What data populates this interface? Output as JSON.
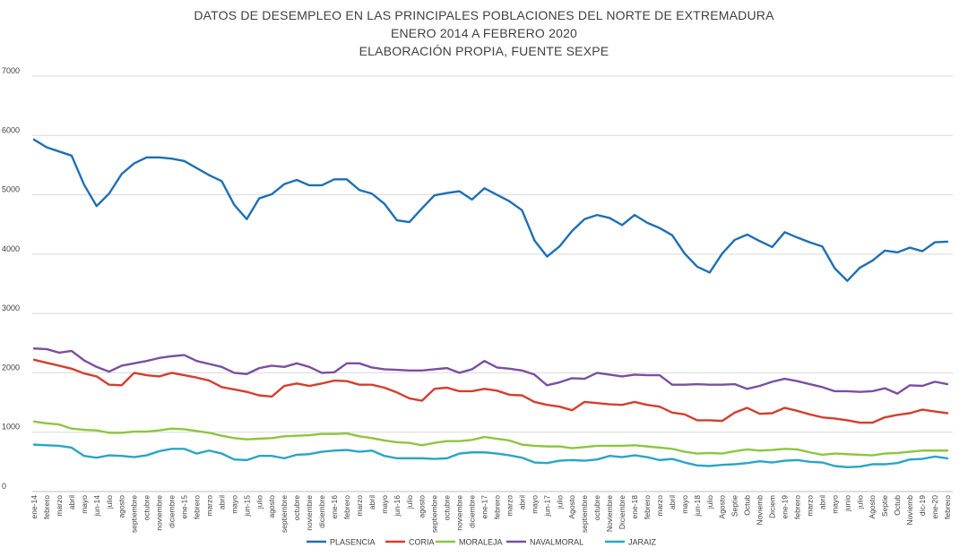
{
  "chart_data": {
    "type": "line",
    "title": [
      "DATOS DE DESEMPLEO EN LAS PRINCIPALES POBLACIONES DEL NORTE DE EXTREMADURA",
      "ENERO 2014 A  FEBRERO 2020",
      "ELABORACIÓN PROPIA, FUENTE SEXPE"
    ],
    "xlabel": "",
    "ylabel": "",
    "ylim": [
      0,
      7000
    ],
    "yticks": [
      0,
      1000,
      2000,
      3000,
      4000,
      5000,
      6000,
      7000
    ],
    "grid": true,
    "legend": "bottom",
    "categories": [
      "ene-14",
      "febrero",
      "marzo",
      "abril",
      "mayo",
      "jun-14",
      "julio",
      "agosto",
      "septiembre",
      "octubre",
      "noviembre",
      "diciembre",
      "ene-15",
      "febrero",
      "marzo",
      "abril",
      "mayo",
      "jun-15",
      "julio",
      "agosto",
      "septiembre",
      "octubre",
      "noviembre",
      "diciembre",
      "ene-16",
      "febrero",
      "marzo",
      "abril",
      "mayo",
      "jun-16",
      "julio",
      "agosto",
      "septiembre",
      "octubre",
      "noviembre",
      "diciembre",
      "ene-17",
      "febrero",
      "marzo",
      "abril",
      "mayo",
      "jun-17",
      "julio",
      "Agosto",
      "septiembre",
      "octubre",
      "Noviembre",
      "Diciembre",
      "ene-18",
      "febrero",
      "marzo",
      "abril",
      "mayo",
      "jun-18",
      "julio",
      "Agosto",
      "Septie",
      "Octub",
      "Noviemb",
      "Diciem",
      "ene-19",
      "febrero",
      "marzo",
      "abril",
      "mayo",
      "junio",
      "julio",
      "Agosto",
      "Septie",
      "Octub",
      "Noviemb",
      "dic-19",
      "ene-20",
      "febrero"
    ],
    "series": [
      {
        "name": "PLASENCIA",
        "color": "#1F6FB5",
        "values": [
          5930,
          5800,
          5730,
          5660,
          5170,
          4810,
          5020,
          5350,
          5530,
          5630,
          5630,
          5610,
          5570,
          5450,
          5330,
          5230,
          4830,
          4590,
          4940,
          5010,
          5180,
          5250,
          5160,
          5160,
          5260,
          5260,
          5080,
          5020,
          4850,
          4570,
          4540,
          4770,
          4990,
          5030,
          5060,
          4920,
          5110,
          5000,
          4890,
          4740,
          4230,
          3960,
          4130,
          4390,
          4590,
          4660,
          4610,
          4490,
          4660,
          4530,
          4440,
          4320,
          4010,
          3790,
          3690,
          4010,
          4240,
          4330,
          4220,
          4120,
          4370,
          4280,
          4200,
          4130,
          3760,
          3550,
          3770,
          3890,
          4060,
          4030,
          4110,
          4050,
          4200,
          4210
        ]
      },
      {
        "name": "CORIA",
        "color": "#D33F2E",
        "values": [
          2220,
          2170,
          2120,
          2070,
          1990,
          1940,
          1800,
          1790,
          2000,
          1960,
          1940,
          2000,
          1960,
          1920,
          1870,
          1760,
          1720,
          1680,
          1620,
          1600,
          1780,
          1820,
          1780,
          1820,
          1870,
          1860,
          1800,
          1800,
          1750,
          1670,
          1570,
          1530,
          1730,
          1750,
          1690,
          1690,
          1730,
          1700,
          1630,
          1620,
          1510,
          1460,
          1430,
          1370,
          1510,
          1490,
          1470,
          1460,
          1510,
          1460,
          1430,
          1330,
          1300,
          1200,
          1200,
          1190,
          1330,
          1410,
          1310,
          1320,
          1410,
          1360,
          1300,
          1250,
          1230,
          1200,
          1160,
          1160,
          1250,
          1290,
          1320,
          1380,
          1350,
          1320
        ]
      },
      {
        "name": "MORALEJA",
        "color": "#8CC63F",
        "values": [
          1180,
          1150,
          1130,
          1060,
          1040,
          1030,
          990,
          990,
          1010,
          1010,
          1030,
          1060,
          1050,
          1020,
          990,
          940,
          900,
          880,
          890,
          900,
          930,
          940,
          950,
          970,
          970,
          980,
          930,
          900,
          860,
          830,
          820,
          780,
          820,
          850,
          850,
          870,
          920,
          890,
          860,
          790,
          770,
          760,
          760,
          730,
          750,
          770,
          770,
          770,
          780,
          760,
          740,
          720,
          670,
          640,
          650,
          640,
          680,
          710,
          690,
          700,
          720,
          710,
          660,
          620,
          640,
          630,
          620,
          610,
          640,
          650,
          670,
          690,
          690,
          690
        ]
      },
      {
        "name": "NAVALMORAL",
        "color": "#7B4FA0",
        "values": [
          2410,
          2400,
          2340,
          2370,
          2210,
          2100,
          2020,
          2120,
          2160,
          2200,
          2250,
          2280,
          2300,
          2200,
          2150,
          2100,
          2000,
          1980,
          2080,
          2120,
          2100,
          2160,
          2100,
          2000,
          2010,
          2160,
          2160,
          2090,
          2060,
          2050,
          2040,
          2040,
          2060,
          2080,
          2000,
          2060,
          2200,
          2090,
          2070,
          2040,
          1970,
          1790,
          1840,
          1910,
          1900,
          2000,
          1970,
          1940,
          1970,
          1960,
          1960,
          1800,
          1800,
          1810,
          1800,
          1800,
          1810,
          1730,
          1780,
          1850,
          1900,
          1860,
          1810,
          1760,
          1690,
          1690,
          1680,
          1690,
          1740,
          1650,
          1790,
          1780,
          1850,
          1810
        ]
      },
      {
        "name": "JARAIZ",
        "color": "#2AA5C6",
        "values": [
          790,
          780,
          770,
          740,
          600,
          570,
          610,
          600,
          580,
          610,
          680,
          720,
          720,
          640,
          690,
          640,
          540,
          530,
          600,
          600,
          560,
          620,
          630,
          670,
          690,
          700,
          670,
          690,
          600,
          560,
          560,
          560,
          550,
          560,
          640,
          660,
          660,
          640,
          610,
          570,
          490,
          480,
          520,
          530,
          520,
          540,
          600,
          580,
          610,
          580,
          530,
          550,
          490,
          440,
          430,
          450,
          460,
          480,
          510,
          490,
          520,
          530,
          500,
          490,
          430,
          410,
          420,
          460,
          460,
          480,
          540,
          550,
          590,
          560
        ]
      }
    ]
  }
}
